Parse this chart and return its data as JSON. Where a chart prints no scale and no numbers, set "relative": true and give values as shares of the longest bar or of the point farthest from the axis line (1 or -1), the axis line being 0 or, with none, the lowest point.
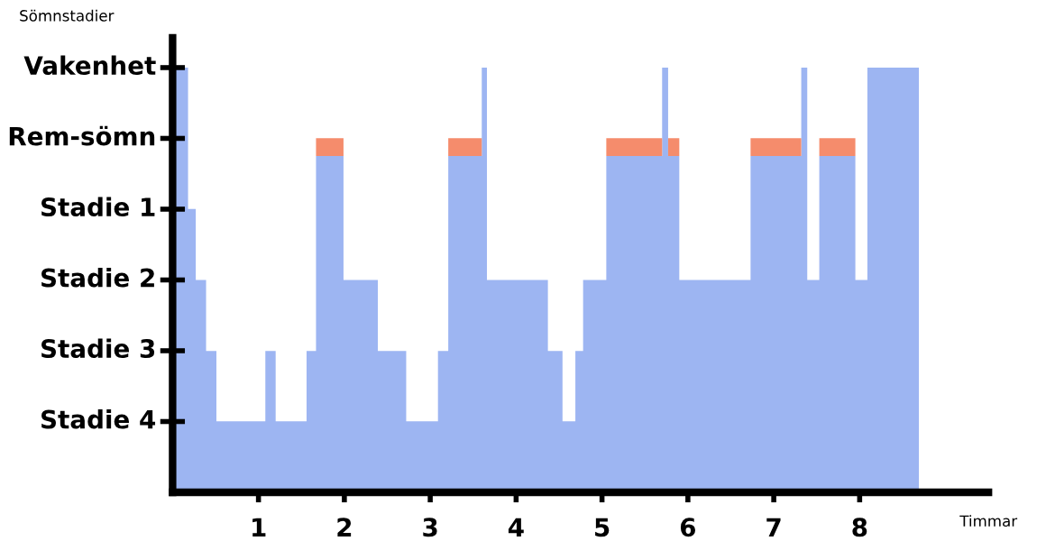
{
  "chart_data": {
    "type": "area",
    "stacked": true,
    "relative": true,
    "ylabel": "Sömnstadier",
    "xlabel": "Timmar",
    "x": [
      0,
      0.18,
      0.27,
      0.39,
      0.51,
      1.08,
      1.2,
      1.56,
      1.67,
      1.99,
      2.39,
      2.72,
      3.09,
      3.21,
      3.6,
      3.66,
      4.37,
      4.54,
      4.69,
      4.78,
      5.05,
      5.7,
      5.77,
      5.9,
      6.73,
      7.32,
      7.39,
      7.53,
      7.95,
      8.09,
      8.69
    ],
    "series": [
      {
        "color": "#9db5f2",
        "values": [
          1,
          0.667,
          0.5,
          0.333,
          0.167,
          0.333,
          0.167,
          0.333,
          0.792,
          0.5,
          0.333,
          0.167,
          0.333,
          0.792,
          1,
          0.5,
          0.333,
          0.167,
          0.333,
          0.5,
          0.792,
          1,
          0.792,
          0.5,
          0.792,
          1,
          0.5,
          0.792,
          0.5,
          1,
          1
        ]
      },
      {
        "color": "#f58c6c",
        "values": [
          0,
          0,
          0,
          0,
          0,
          0,
          0,
          0,
          0.042,
          0,
          0,
          0,
          0,
          0.042,
          0,
          0,
          0,
          0,
          0,
          0,
          0.042,
          0,
          0.042,
          0,
          0.042,
          0,
          0,
          0.042,
          0,
          0,
          0
        ]
      }
    ],
    "annotations": [
      "Stadie 4",
      "Stadie 3",
      "Stadie 2",
      "Stadie 1",
      "Rem-sömn",
      "Vakenhet"
    ],
    "xlim": [
      0,
      9.5
    ],
    "xticks": [
      1,
      2,
      3,
      4,
      5,
      6,
      7,
      8
    ],
    "grid": false,
    "legend": false
  }
}
